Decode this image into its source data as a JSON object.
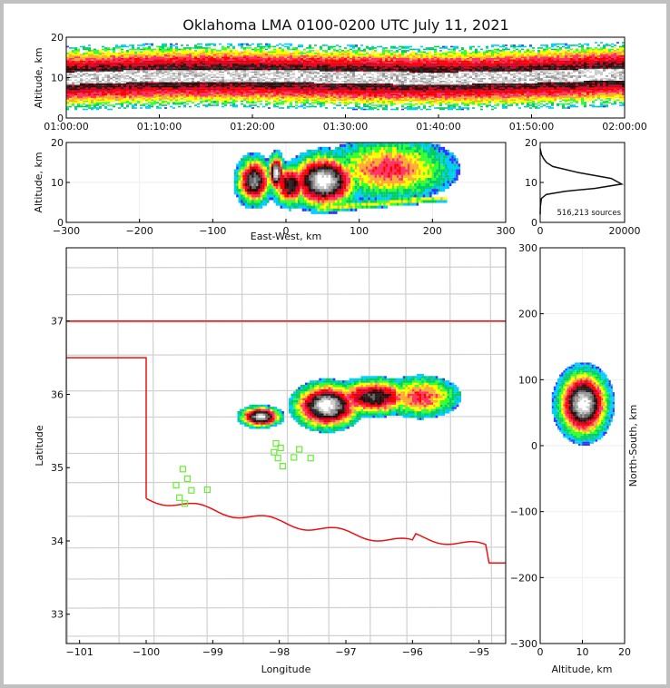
{
  "chart_data": [
    {
      "id": "time_height",
      "type": "heatmap",
      "title": "Oklahoma LMA 0100-0200 UTC July 11, 2021",
      "xlabel": "",
      "ylabel": "Altitude, km",
      "xlim": [
        "01:00:00",
        "02:00:00"
      ],
      "ylim": [
        0,
        20
      ],
      "xticks": [
        "01:00:00",
        "01:10:00",
        "01:20:00",
        "01:30:00",
        "01:40:00",
        "01:50:00",
        "02:00:00"
      ],
      "yticks": [
        "0",
        "10",
        "20"
      ],
      "density_band_km": {
        "core_low": 8,
        "core_high": 12,
        "outer_low": 3,
        "outer_high": 18
      }
    },
    {
      "id": "east_west",
      "type": "heatmap",
      "xlabel": "East-West, km",
      "ylabel": "Altitude, km",
      "xlim": [
        -300,
        300
      ],
      "ylim": [
        0,
        20
      ],
      "xticks": [
        "−300",
        "−200",
        "−100",
        "0",
        "100",
        "200",
        "300"
      ],
      "yticks": [
        "0",
        "10",
        "20"
      ],
      "grid": true
    },
    {
      "id": "altitude_histogram",
      "type": "line",
      "annotation": "516,213 sources",
      "xlim": [
        0,
        20000
      ],
      "ylim": [
        0,
        20
      ],
      "xticks": [
        "0",
        "20000"
      ],
      "yticks": [
        "0",
        "10",
        "20"
      ],
      "x": [
        0,
        50,
        300,
        1500,
        6000,
        13000,
        19500,
        17000,
        9000,
        3000,
        1500,
        800,
        300,
        0
      ],
      "y": [
        2,
        4,
        6,
        7,
        7.8,
        8.5,
        9.6,
        11,
        12.5,
        14,
        15,
        16,
        17,
        18.5
      ]
    },
    {
      "id": "plan_view",
      "type": "heatmap",
      "xlabel": "Longitude",
      "ylabel": "Latitude",
      "xlim": [
        -101.2,
        -94.6
      ],
      "ylim": [
        32.6,
        38
      ],
      "xticks": [
        "−101",
        "−100",
        "−99",
        "−98",
        "−97",
        "−96",
        "−95"
      ],
      "yticks": [
        "33",
        "34",
        "35",
        "36",
        "37"
      ],
      "stations": [
        [
          -99.45,
          34.98
        ],
        [
          -99.38,
          34.85
        ],
        [
          -99.55,
          34.76
        ],
        [
          -99.32,
          34.69
        ],
        [
          -99.08,
          34.7
        ],
        [
          -99.5,
          34.59
        ],
        [
          -99.42,
          34.51
        ],
        [
          -98.05,
          35.33
        ],
        [
          -97.98,
          35.27
        ],
        [
          -98.08,
          35.21
        ],
        [
          -97.7,
          35.25
        ],
        [
          -98.02,
          35.13
        ],
        [
          -97.78,
          35.14
        ],
        [
          -97.53,
          35.13
        ],
        [
          -97.95,
          35.02
        ]
      ]
    },
    {
      "id": "north_south",
      "type": "heatmap",
      "xlabel": "Altitude, km",
      "ylabel": "North-South, km",
      "xlim": [
        0,
        20
      ],
      "ylim": [
        -300,
        300
      ],
      "xticks": [
        "0",
        "10",
        "20"
      ],
      "yticks": [
        "−300",
        "−200",
        "−100",
        "0",
        "100",
        "200",
        "300"
      ],
      "grid": true
    }
  ],
  "colors": {
    "state_border": "#ee1111",
    "county_line": "#cccccc",
    "station": "#66ee33",
    "background": "#c0c0c0"
  }
}
